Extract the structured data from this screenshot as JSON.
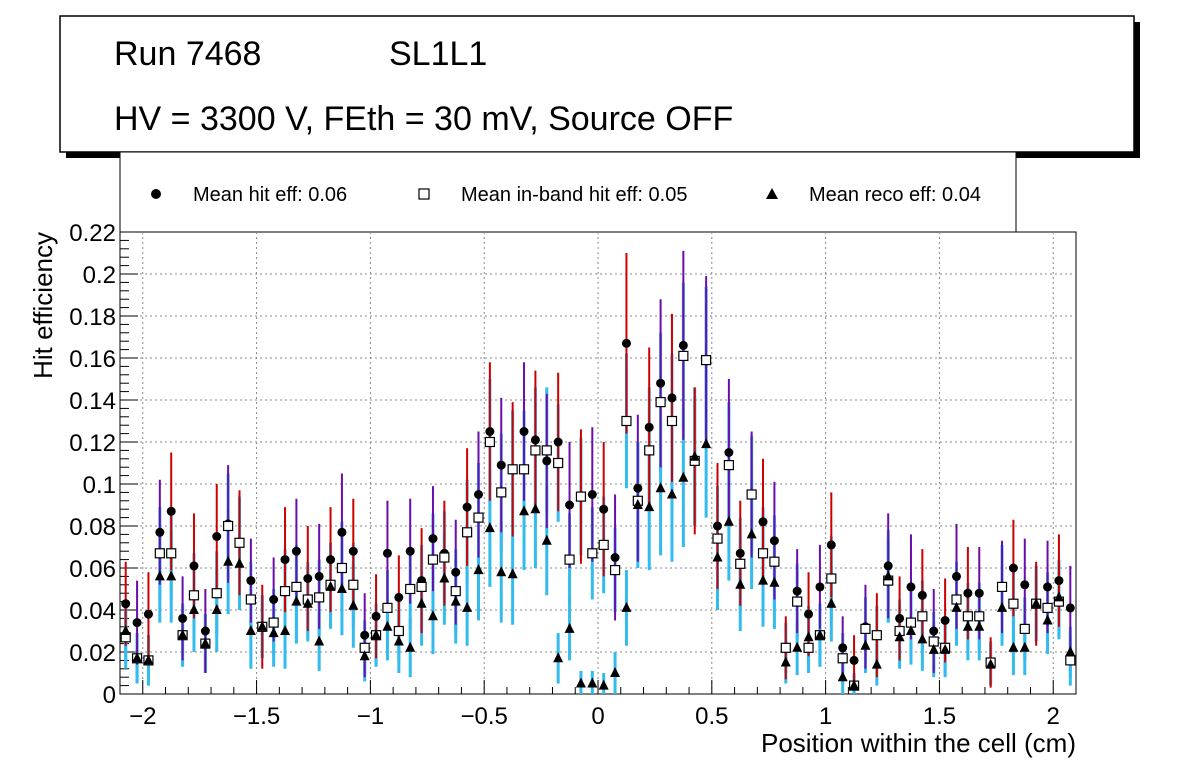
{
  "info_box": {
    "run": "Run 7468",
    "layer": "SL1L1",
    "conditions": "HV = 3300 V, FEth = 30 mV, Source OFF"
  },
  "colors": {
    "hit_err": "#cc0000",
    "hit_err_alt": "#6a0dad",
    "inband_err": "#33bbee",
    "marker": "#000000",
    "grid": "#888888"
  },
  "chart_data": {
    "type": "scatter",
    "title": "",
    "xlabel": "Position within the cell (cm)",
    "ylabel": "Hit efficiency",
    "xlim": [
      -2.1,
      2.1
    ],
    "ylim": [
      0,
      0.22
    ],
    "grid": true,
    "legend_position": "top",
    "x_ticks": [
      -2,
      -1.5,
      -1,
      -0.5,
      0,
      0.5,
      1,
      1.5,
      2
    ],
    "x_tick_labels": [
      "−2",
      "−1.5",
      "−1",
      "−0.5",
      "0",
      "0.5",
      "1",
      "1.5",
      "2"
    ],
    "y_ticks": [
      0,
      0.02,
      0.04,
      0.06,
      0.08,
      0.1,
      0.12,
      0.14,
      0.16,
      0.18,
      0.2,
      0.22
    ],
    "y_tick_labels": [
      "0",
      "0.02",
      "0.04",
      "0.06",
      "0.08",
      "0.1",
      "0.12",
      "0.14",
      "0.16",
      "0.18",
      "0.2",
      "0.22"
    ],
    "x": [
      -2.075,
      -2.025,
      -1.975,
      -1.925,
      -1.875,
      -1.825,
      -1.775,
      -1.725,
      -1.675,
      -1.625,
      -1.575,
      -1.525,
      -1.475,
      -1.425,
      -1.375,
      -1.325,
      -1.275,
      -1.225,
      -1.175,
      -1.125,
      -1.075,
      -1.025,
      -0.975,
      -0.925,
      -0.875,
      -0.825,
      -0.775,
      -0.725,
      -0.675,
      -0.625,
      -0.575,
      -0.525,
      -0.475,
      -0.425,
      -0.375,
      -0.325,
      -0.275,
      -0.225,
      -0.175,
      -0.125,
      -0.075,
      -0.025,
      0.025,
      0.075,
      0.125,
      0.175,
      0.225,
      0.275,
      0.325,
      0.375,
      0.425,
      0.475,
      0.525,
      0.575,
      0.625,
      0.675,
      0.725,
      0.775,
      0.825,
      0.875,
      0.925,
      0.975,
      1.025,
      1.075,
      1.125,
      1.175,
      1.225,
      1.275,
      1.325,
      1.375,
      1.425,
      1.475,
      1.525,
      1.575,
      1.625,
      1.675,
      1.725,
      1.775,
      1.825,
      1.875,
      1.925,
      1.975,
      2.025,
      2.075
    ],
    "series": [
      {
        "name": "Mean hit  eff: 0.06",
        "marker": "circle",
        "values": [
          0.043,
          0.034,
          0.038,
          0.077,
          0.087,
          0.036,
          0.061,
          0.03,
          0.075,
          0.081,
          0.072,
          0.054,
          0.032,
          0.045,
          0.064,
          0.068,
          0.055,
          0.056,
          0.064,
          0.077,
          0.068,
          0.028,
          0.037,
          0.067,
          0.046,
          0.068,
          0.054,
          0.074,
          0.067,
          0.058,
          0.089,
          0.095,
          0.125,
          0.109,
          0.107,
          0.125,
          0.121,
          0.111,
          0.12,
          0.09,
          0.094,
          0.095,
          0.088,
          0.065,
          0.167,
          0.098,
          0.127,
          0.148,
          0.141,
          0.166,
          0.111,
          0.159,
          0.08,
          0.115,
          0.067,
          0.095,
          0.082,
          0.073,
          0.022,
          0.049,
          0.038,
          0.051,
          0.071,
          0.022,
          0.016,
          0.032,
          0.028,
          0.061,
          0.036,
          0.051,
          0.047,
          0.03,
          0.035,
          0.056,
          0.048,
          0.048,
          0.015,
          0.051,
          0.06,
          0.052,
          0.043,
          0.051,
          0.054,
          0.041
        ],
        "err": [
          0.02,
          0.02,
          0.02,
          0.025,
          0.028,
          0.02,
          0.025,
          0.02,
          0.025,
          0.028,
          0.025,
          0.02,
          0.02,
          0.02,
          0.025,
          0.025,
          0.025,
          0.025,
          0.025,
          0.028,
          0.025,
          0.02,
          0.02,
          0.025,
          0.02,
          0.025,
          0.025,
          0.025,
          0.025,
          0.025,
          0.028,
          0.03,
          0.033,
          0.032,
          0.032,
          0.033,
          0.033,
          0.032,
          0.033,
          0.03,
          0.032,
          0.032,
          0.032,
          0.03,
          0.043,
          0.035,
          0.038,
          0.04,
          0.04,
          0.045,
          0.035,
          0.04,
          0.03,
          0.035,
          0.025,
          0.03,
          0.03,
          0.028,
          0.015,
          0.02,
          0.02,
          0.02,
          0.025,
          0.015,
          0.012,
          0.02,
          0.02,
          0.025,
          0.02,
          0.025,
          0.022,
          0.02,
          0.02,
          0.025,
          0.022,
          0.022,
          0.012,
          0.022,
          0.023,
          0.022,
          0.02,
          0.022,
          0.022,
          0.02
        ]
      },
      {
        "name": "Mean in-band hit eff: 0.05",
        "marker": "open-square",
        "values": [
          0.027,
          0.017,
          0.016,
          0.067,
          0.067,
          0.028,
          0.047,
          0.024,
          0.048,
          0.08,
          0.072,
          0.045,
          0.032,
          0.034,
          0.049,
          0.051,
          0.045,
          0.046,
          0.052,
          0.06,
          0.052,
          0.022,
          0.028,
          0.041,
          0.03,
          0.05,
          0.051,
          0.064,
          0.065,
          0.049,
          0.077,
          0.084,
          0.12,
          0.096,
          0.107,
          0.107,
          0.116,
          0.116,
          0.11,
          0.064,
          0.094,
          0.067,
          0.071,
          0.059,
          0.13,
          0.092,
          0.116,
          0.139,
          0.13,
          0.161,
          0.111,
          0.159,
          0.074,
          0.109,
          0.062,
          0.095,
          0.067,
          0.063,
          0.022,
          0.044,
          0.022,
          0.028,
          0.055,
          0.017,
          0.004,
          0.031,
          0.028,
          0.054,
          0.03,
          0.034,
          0.037,
          0.025,
          0.022,
          0.045,
          0.037,
          0.037,
          0.015,
          0.051,
          0.043,
          0.031,
          0.043,
          0.041,
          0.044,
          0.016
        ],
        "err": [
          0.015,
          0.012,
          0.012,
          0.022,
          0.022,
          0.015,
          0.02,
          0.014,
          0.02,
          0.025,
          0.022,
          0.018,
          0.015,
          0.016,
          0.02,
          0.02,
          0.018,
          0.018,
          0.02,
          0.022,
          0.02,
          0.013,
          0.015,
          0.018,
          0.015,
          0.02,
          0.02,
          0.022,
          0.022,
          0.02,
          0.025,
          0.026,
          0.03,
          0.028,
          0.028,
          0.028,
          0.03,
          0.03,
          0.028,
          0.022,
          0.028,
          0.022,
          0.023,
          0.02,
          0.032,
          0.028,
          0.03,
          0.033,
          0.032,
          0.035,
          0.03,
          0.035,
          0.025,
          0.03,
          0.022,
          0.028,
          0.022,
          0.022,
          0.012,
          0.018,
          0.012,
          0.015,
          0.02,
          0.012,
          0.006,
          0.015,
          0.014,
          0.02,
          0.015,
          0.016,
          0.017,
          0.014,
          0.013,
          0.018,
          0.016,
          0.016,
          0.01,
          0.02,
          0.018,
          0.015,
          0.018,
          0.017,
          0.018,
          0.012
        ]
      },
      {
        "name": "Mean reco eff: 0.04",
        "marker": "triangle",
        "values": [
          0.03,
          0.017,
          0.016,
          0.056,
          0.056,
          0.028,
          0.04,
          0.024,
          0.04,
          0.063,
          0.062,
          0.03,
          0.032,
          0.029,
          0.03,
          0.044,
          0.043,
          0.025,
          0.051,
          0.05,
          0.042,
          0.018,
          0.028,
          0.032,
          0.025,
          0.022,
          0.043,
          0.037,
          0.055,
          0.044,
          0.041,
          0.059,
          0.079,
          0.058,
          0.057,
          0.087,
          0.088,
          0.073,
          0.017,
          0.031,
          0.005,
          0.005,
          0.004,
          0.01,
          0.041,
          0.09,
          0.089,
          0.098,
          0.095,
          0.103,
          0.113,
          0.119,
          0.065,
          0.082,
          0.052,
          0.076,
          0.054,
          0.053,
          0.015,
          0.022,
          0.027,
          0.028,
          0.043,
          0.008,
          0.004,
          0.023,
          0.014,
          0.056,
          0.027,
          0.03,
          0.026,
          0.021,
          0.021,
          0.041,
          0.032,
          0.032,
          0.014,
          0.041,
          0.022,
          0.022,
          0.043,
          0.035,
          0.046,
          0.02
        ],
        "err": [
          0.015,
          0.012,
          0.012,
          0.022,
          0.022,
          0.015,
          0.02,
          0.014,
          0.02,
          0.025,
          0.022,
          0.018,
          0.015,
          0.016,
          0.018,
          0.02,
          0.018,
          0.014,
          0.02,
          0.022,
          0.02,
          0.012,
          0.015,
          0.016,
          0.015,
          0.014,
          0.02,
          0.018,
          0.022,
          0.02,
          0.018,
          0.024,
          0.028,
          0.024,
          0.024,
          0.028,
          0.028,
          0.026,
          0.012,
          0.015,
          0.006,
          0.006,
          0.006,
          0.01,
          0.018,
          0.03,
          0.03,
          0.032,
          0.032,
          0.033,
          0.033,
          0.035,
          0.025,
          0.028,
          0.022,
          0.026,
          0.022,
          0.022,
          0.01,
          0.013,
          0.015,
          0.015,
          0.018,
          0.008,
          0.005,
          0.013,
          0.01,
          0.022,
          0.015,
          0.016,
          0.015,
          0.013,
          0.013,
          0.018,
          0.016,
          0.016,
          0.01,
          0.018,
          0.013,
          0.013,
          0.018,
          0.016,
          0.018,
          0.012
        ]
      }
    ]
  }
}
